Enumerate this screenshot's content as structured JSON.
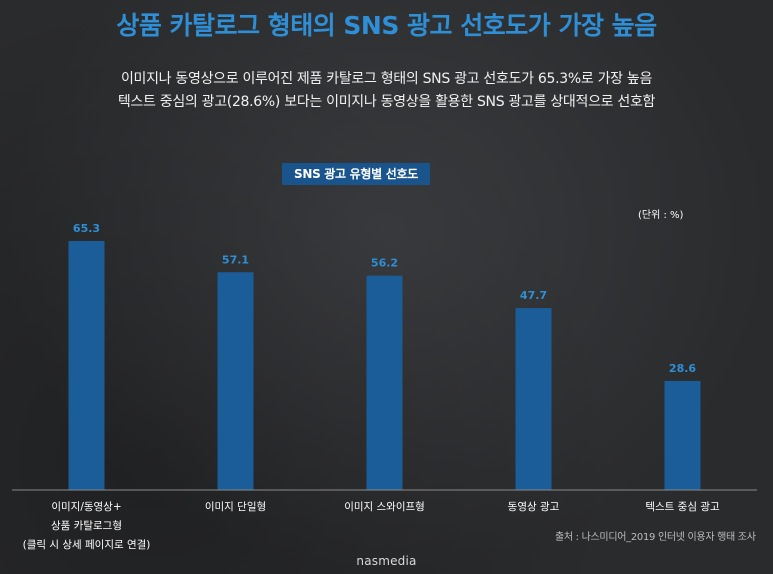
{
  "header": {
    "title": "상품 카탈로그 형태의 SNS 광고 선호도가 가장 높음",
    "subtitle_line1": "이미지나 동영상으로 이루어진 제품 카탈로그 형태의 SNS 광고 선호도가 65.3%로 가장 높음",
    "subtitle_line2": "텍스트 중심의 광고(28.6%) 보다는 이미지나 동영상을 활용한 SNS 광고를 상대적으로 선호함"
  },
  "chart_data": {
    "type": "bar",
    "title": "SNS 광고 유형별 선호도",
    "unit": "(단위 : %)",
    "categories": [
      [
        "이미지/동영상+",
        "상품 카탈로그형",
        "(클릭 시 상세 페이지로 연결)"
      ],
      [
        "이미지 단일형"
      ],
      [
        "이미지 스와이프형"
      ],
      [
        "동영상 광고"
      ],
      [
        "텍스트 중심 광고"
      ]
    ],
    "values": [
      65.3,
      57.1,
      56.2,
      47.7,
      28.6
    ],
    "value_labels": [
      "65.3",
      "57.1",
      "56.2",
      "47.7",
      "28.6"
    ],
    "bar_color": "#1b5d99",
    "value_label_color": "#2f8fd6",
    "ylim": [
      0,
      75
    ],
    "grid": false,
    "legend": "none"
  },
  "footer": {
    "source": "출처 : 나스미디어_2019 인터넷 이용자 행태 조사",
    "logo": "nasmedia"
  }
}
